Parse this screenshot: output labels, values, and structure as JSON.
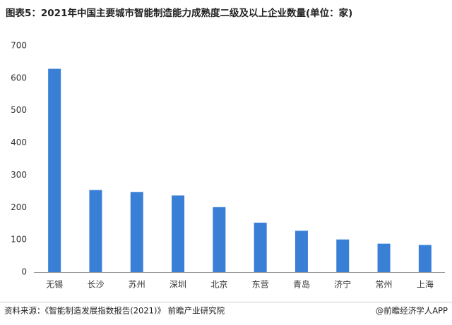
{
  "chart_data": {
    "type": "bar",
    "title": "图表5：2021年中国主要城市智能制造能力成熟度二级及以上企业数量(单位：家)",
    "categories": [
      "无锡",
      "长沙",
      "苏州",
      "深圳",
      "北京",
      "东营",
      "青岛",
      "济宁",
      "常州",
      "上海"
    ],
    "values": [
      629,
      254,
      248,
      237,
      201,
      153,
      128,
      101,
      88,
      84
    ],
    "color": "#3a7fd6",
    "ylim": [
      0,
      700
    ],
    "yticks": [
      0,
      100,
      200,
      300,
      400,
      500,
      600,
      700
    ],
    "grid": false,
    "source": "资料来源：《智能制造发展指数报告(2021)》 前瞻产业研究院",
    "credit": "@前瞻经济学人APP"
  }
}
